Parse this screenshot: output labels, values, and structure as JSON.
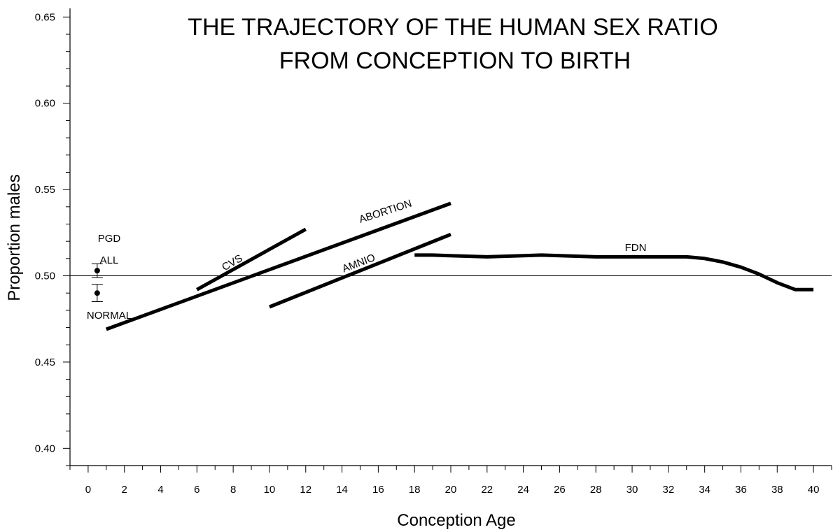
{
  "chart_data": {
    "type": "line",
    "title_lines": [
      "THE TRAJECTORY OF THE HUMAN SEX RATIO",
      "FROM CONCEPTION TO BIRTH"
    ],
    "xlabel": "Conception Age",
    "ylabel": "Proportion males",
    "xlim": [
      -1,
      41
    ],
    "ylim": [
      0.39,
      0.655
    ],
    "x_ticks": [
      0,
      2,
      4,
      6,
      8,
      10,
      12,
      14,
      16,
      18,
      20,
      22,
      24,
      26,
      28,
      30,
      32,
      34,
      36,
      38,
      40
    ],
    "y_ticks": [
      0.4,
      0.45,
      0.5,
      0.55,
      0.6,
      0.65
    ],
    "y_tick_labels": [
      "0.40",
      "0.45",
      "0.50",
      "0.55",
      "0.60",
      "0.65"
    ],
    "reference_line": 0.5,
    "grid": false,
    "series": [
      {
        "name": "CVS",
        "x": [
          6,
          12
        ],
        "y": [
          0.492,
          0.527
        ]
      },
      {
        "name": "ABORTION",
        "x": [
          1,
          20
        ],
        "y": [
          0.469,
          0.542
        ]
      },
      {
        "name": "AMNIO",
        "x": [
          10,
          20
        ],
        "y": [
          0.482,
          0.524
        ]
      },
      {
        "name": "FDN",
        "x": [
          18,
          19,
          22,
          25,
          28,
          31,
          33,
          34,
          35,
          36,
          37,
          38,
          39,
          40
        ],
        "y": [
          0.512,
          0.512,
          0.511,
          0.512,
          0.511,
          0.511,
          0.511,
          0.51,
          0.508,
          0.505,
          0.501,
          0.496,
          0.492,
          0.492
        ]
      }
    ],
    "points": [
      {
        "name": "ALL",
        "x": 0.5,
        "y": 0.503,
        "err_low": 0.499,
        "err_high": 0.507
      },
      {
        "name": "NORMAL",
        "x": 0.5,
        "y": 0.49,
        "err_low": 0.485,
        "err_high": 0.495
      }
    ],
    "annotations": [
      "PGD",
      "ALL",
      "NORMAL",
      "CVS",
      "ABORTION",
      "AMNIO",
      "FDN"
    ]
  }
}
